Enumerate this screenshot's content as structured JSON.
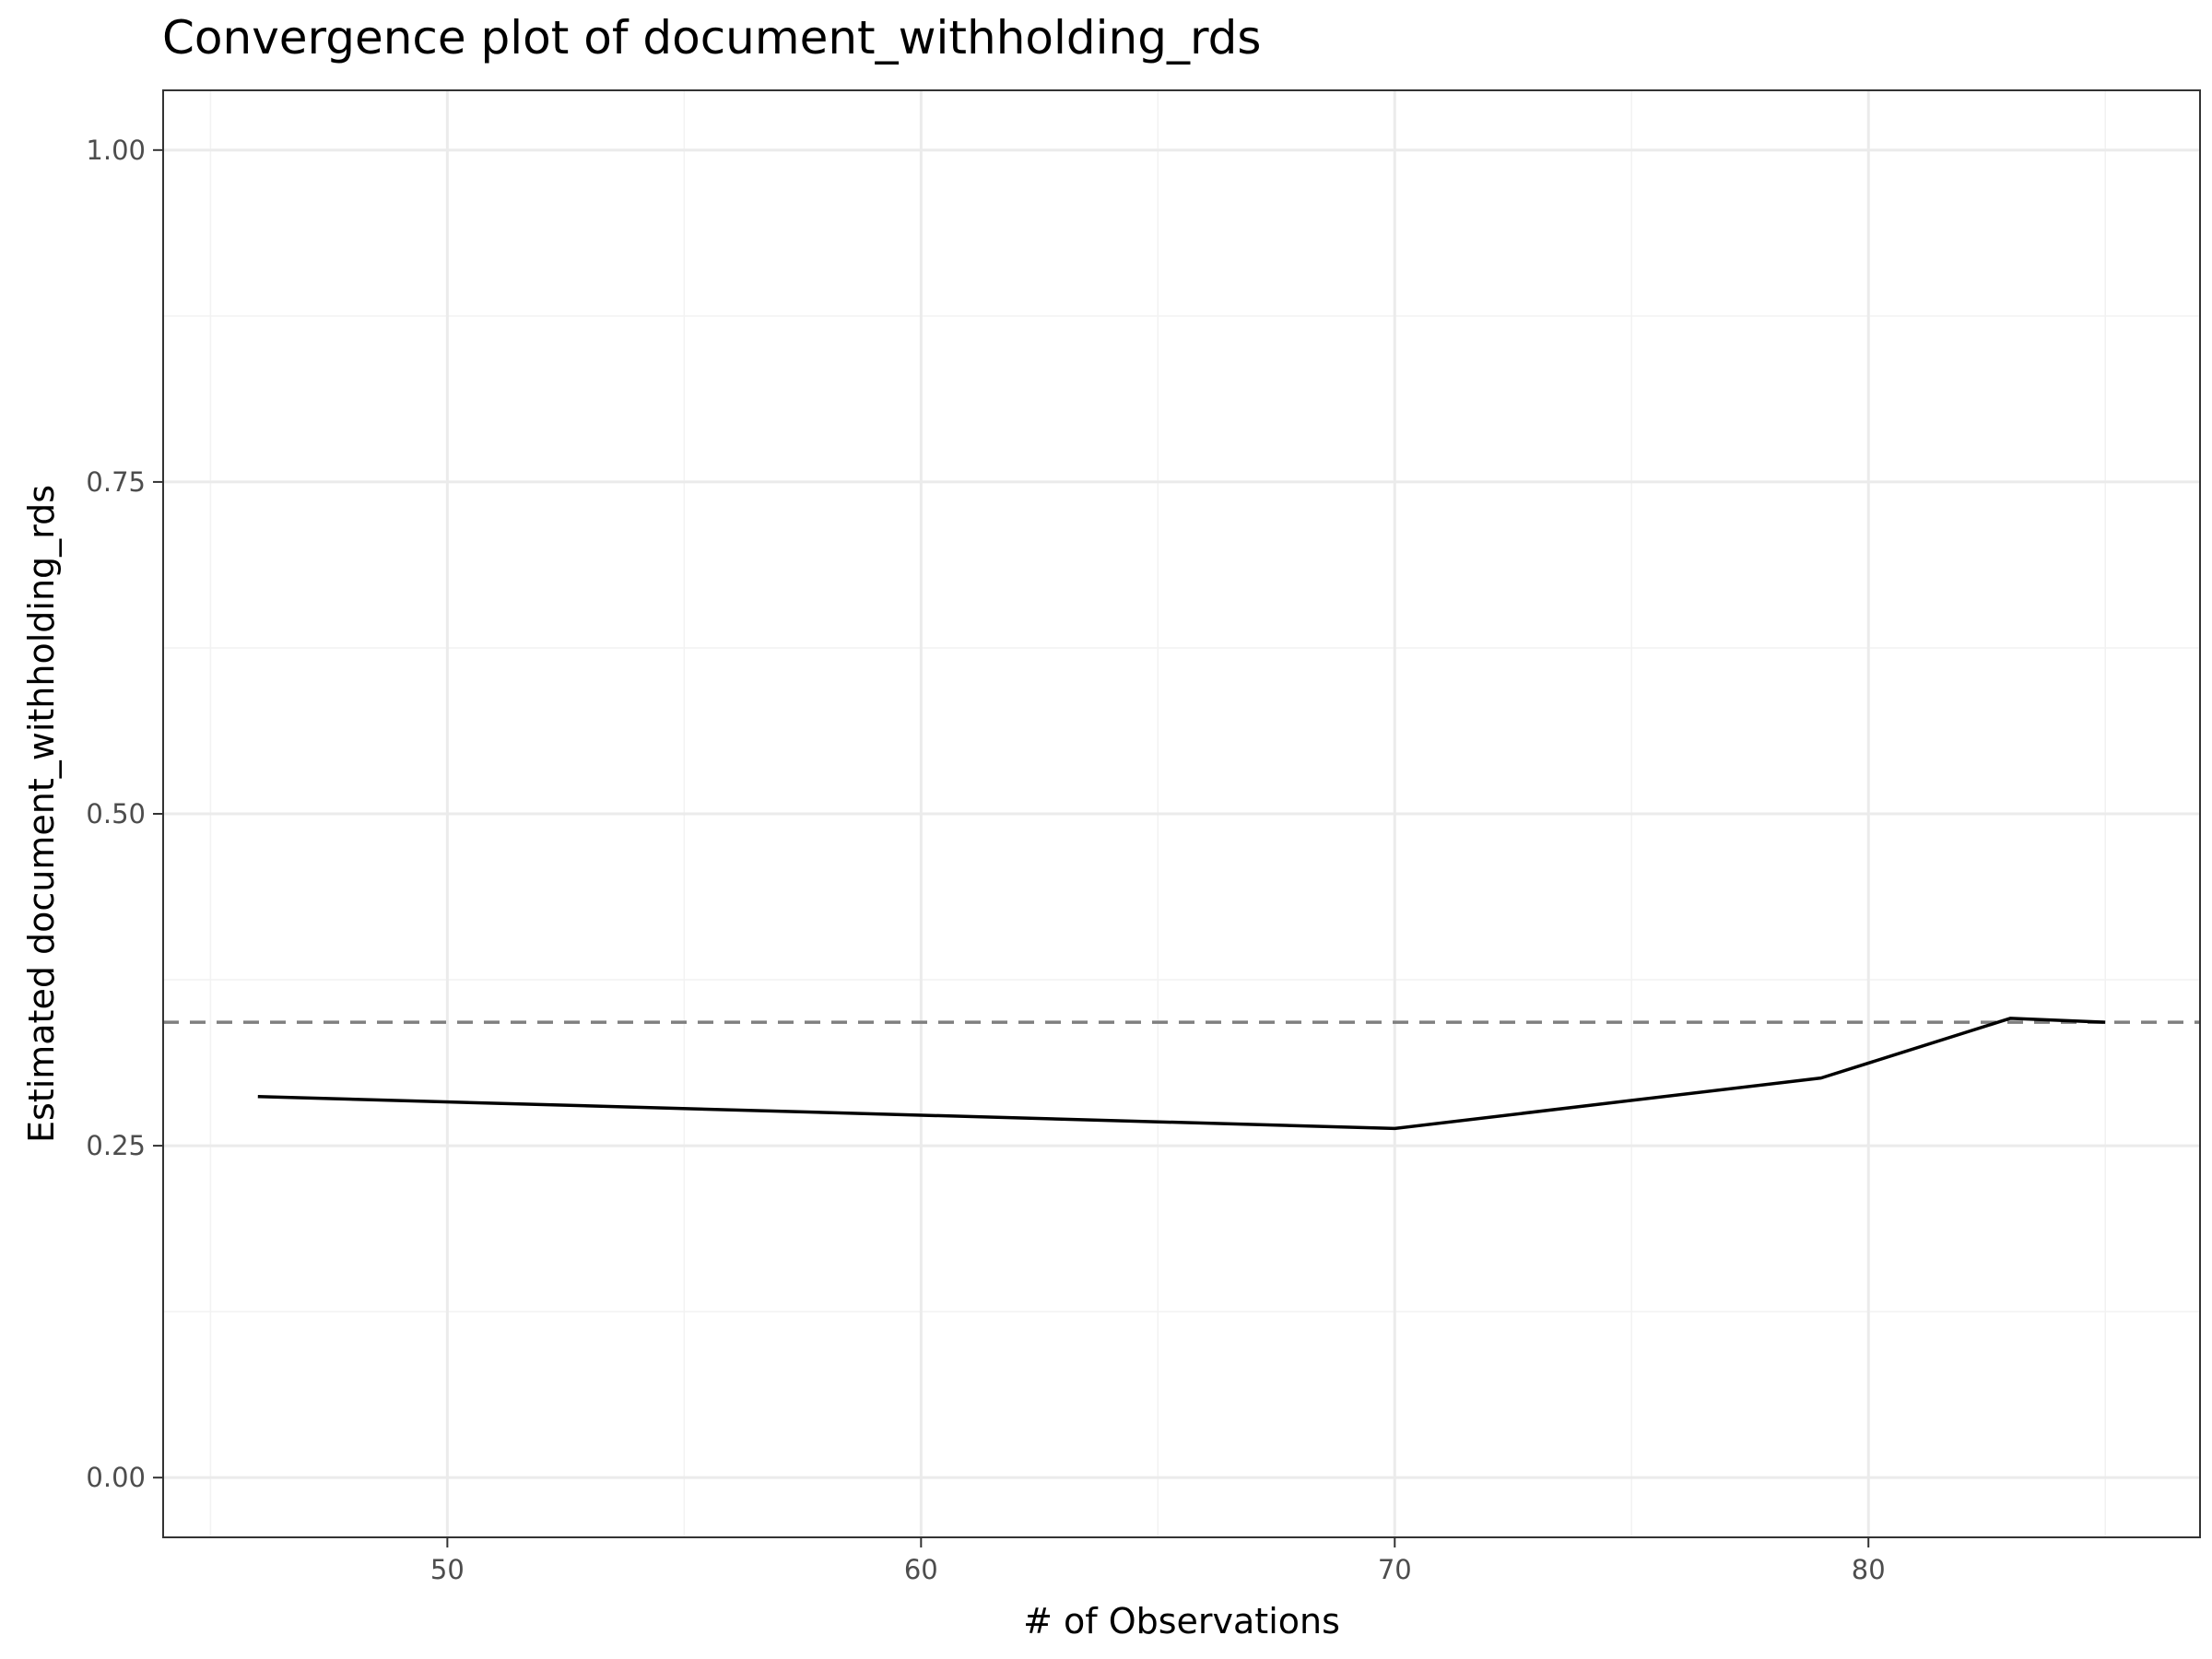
{
  "chart_data": {
    "type": "line",
    "title": "Convergence plot of document_withholding_rds",
    "xlabel": "# of Observations",
    "ylabel": "Estimated document_withholding_rds",
    "xlim": [
      44,
      87
    ],
    "ylim": [
      -0.045,
      1.045
    ],
    "x_ticks": [
      50,
      60,
      70,
      80
    ],
    "x_tick_labels": [
      "50",
      "60",
      "70",
      "80"
    ],
    "x_minor_ticks": [
      45,
      55,
      65,
      75,
      85
    ],
    "y_ticks": [
      0,
      0.25,
      0.5,
      0.75,
      1.0
    ],
    "y_tick_labels": [
      "0.00",
      "0.25",
      "0.50",
      "0.75",
      "1.00"
    ],
    "y_minor_ticks": [
      0.125,
      0.375,
      0.625,
      0.875
    ],
    "grid": true,
    "series": [
      {
        "x": [
          46,
          70,
          79,
          83,
          85
        ],
        "y": [
          0.287,
          0.263,
          0.301,
          0.346,
          0.343
        ],
        "color": "#000000",
        "linestyle": "solid"
      }
    ],
    "reference_line": {
      "orientation": "horizontal",
      "y": 0.343,
      "color": "#7f7f7f",
      "linestyle": "dashed"
    }
  }
}
